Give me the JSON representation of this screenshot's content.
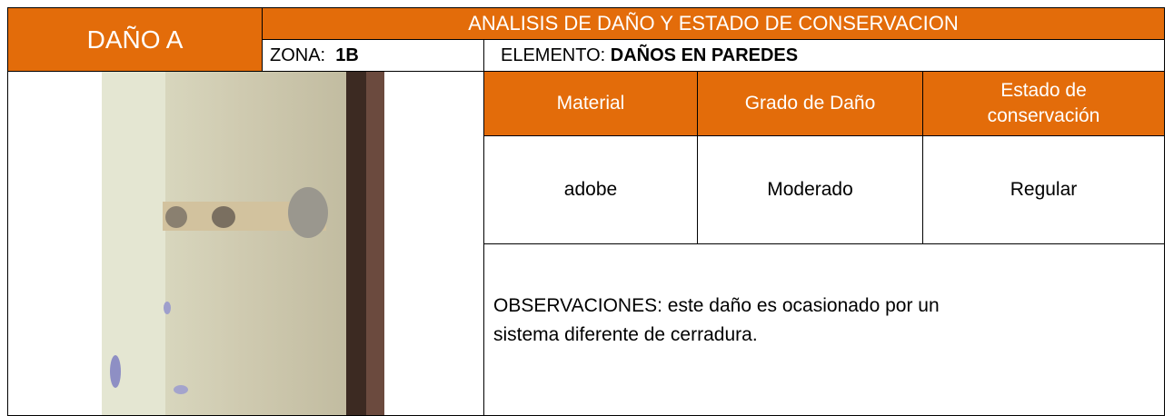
{
  "header": {
    "code": "DAÑO A",
    "title": "ANALISIS DE DAÑO Y ESTADO DE CONSERVACION"
  },
  "zona": {
    "label": "ZONA:",
    "value": "1B"
  },
  "elemento": {
    "label": "ELEMENTO:",
    "value": "DAÑOS EN PAREDES"
  },
  "table": {
    "headers": [
      "Material",
      "Grado de Daño",
      "Estado de conservación"
    ],
    "rows": [
      [
        "adobe",
        "Moderado",
        "Regular"
      ]
    ]
  },
  "observaciones": "OBSERVACIONES: este daño es ocasionado por un sistema diferente de cerradura."
}
